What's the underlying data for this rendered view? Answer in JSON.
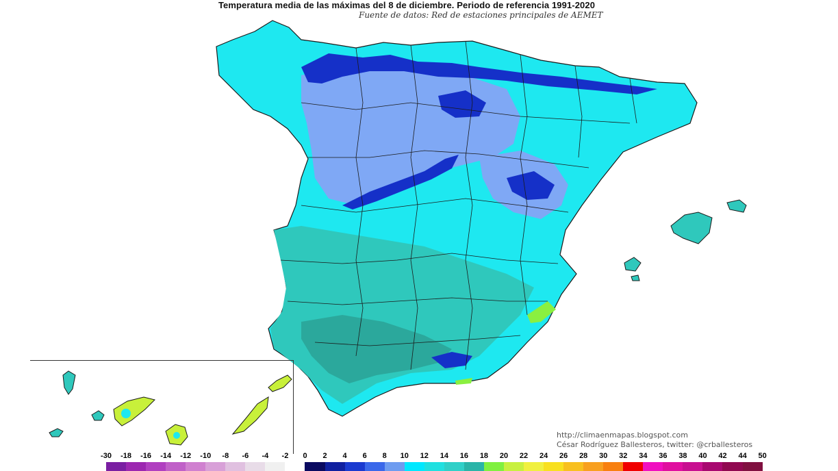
{
  "header": {
    "title": "Temperatura media de las máximas del 8 de diciembre. Periodo de referencia 1991-2020",
    "subtitle": "Fuente de datos: Red de estaciones principales de AEMET"
  },
  "credits": {
    "line1": "http://climaenmapas.blogspot.com",
    "line2": "César Rodríguez Ballesteros, twitter: @crballesteros"
  },
  "legend": {
    "ticks": [
      "-30",
      "-18",
      "-16",
      "-14",
      "-12",
      "-10",
      "-8",
      "-6",
      "-4",
      "-2",
      "0",
      "2",
      "4",
      "6",
      "8",
      "10",
      "12",
      "14",
      "16",
      "18",
      "20",
      "22",
      "24",
      "26",
      "28",
      "30",
      "32",
      "34",
      "36",
      "38",
      "40",
      "42",
      "44",
      "50"
    ],
    "colors": [
      "#7a1fa2",
      "#9c27b0",
      "#b03fc0",
      "#c060c8",
      "#d080d0",
      "#d8a0d8",
      "#e0c0e0",
      "#e8dce8",
      "#f0f0f0",
      "#ffffff",
      "#0a0a60",
      "#1020a0",
      "#1a3ad0",
      "#3a68ea",
      "#6e9cf0",
      "#00e8ff",
      "#20e0e0",
      "#30d0c8",
      "#2ab4a8",
      "#80f040",
      "#c8f040",
      "#f0f040",
      "#f8e020",
      "#f8c020",
      "#f8a020",
      "#f88010",
      "#f00000",
      "#f010c0",
      "#e010a0",
      "#c81090",
      "#a80870",
      "#900850",
      "#801040"
    ]
  },
  "map_colors": {
    "sea": "#ffffff",
    "cool_plateau": "#7fa8f5",
    "mountains": "#1530c8",
    "interior": "#1ee8f0",
    "south_west": "#2fc8bc",
    "guadalquivir": "#2ba89c",
    "coast_warm": "#8af040",
    "islands_warm": "#c8f03a",
    "border": "#1a1a1a"
  }
}
